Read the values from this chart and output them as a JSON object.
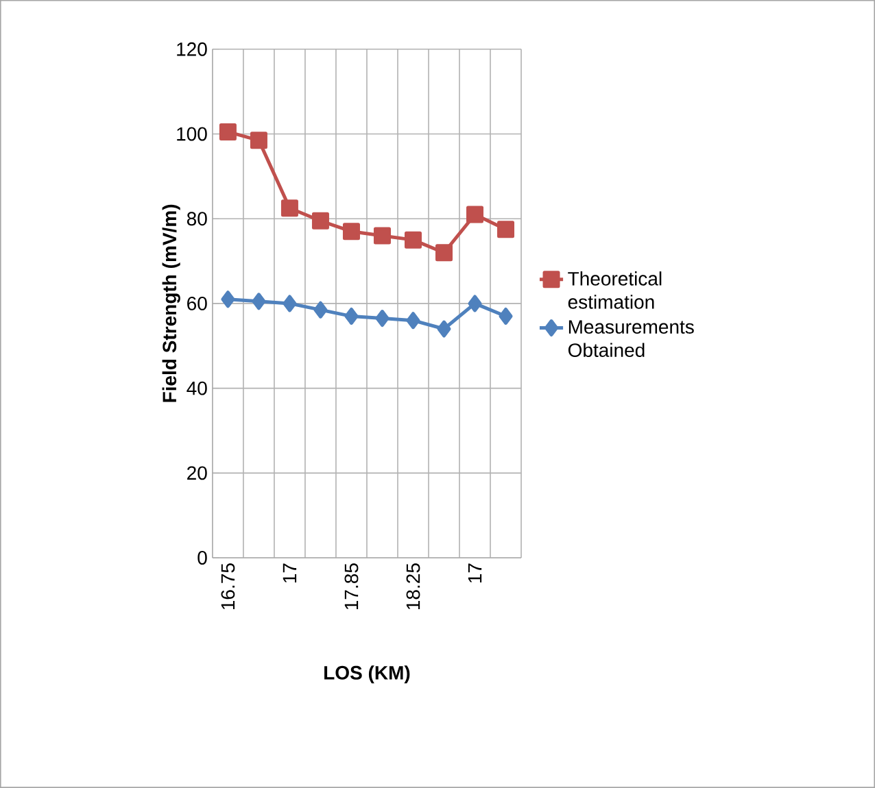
{
  "chart_data": {
    "type": "line",
    "xlabel": "LOS (KM)",
    "ylabel": "Field Strength (mV/m)",
    "categories": [
      "16.75",
      null,
      "17",
      null,
      "17.85",
      null,
      "18.25",
      null,
      "17",
      null
    ],
    "series": [
      {
        "name": "Theoretical estimation",
        "color": "#c0504d",
        "marker": "square",
        "values": [
          100.5,
          98.5,
          82.5,
          79.5,
          77,
          76,
          75,
          72,
          81,
          77.5
        ]
      },
      {
        "name": "Measurements Obtained",
        "color": "#4f81bd",
        "marker": "diamond",
        "values": [
          61,
          60.5,
          60,
          58.5,
          57,
          56.5,
          56,
          54,
          60,
          57
        ]
      }
    ],
    "ylim": [
      0,
      120
    ],
    "yticks": [
      0,
      20,
      40,
      60,
      80,
      100,
      120
    ],
    "grid": true,
    "legend": "right"
  }
}
